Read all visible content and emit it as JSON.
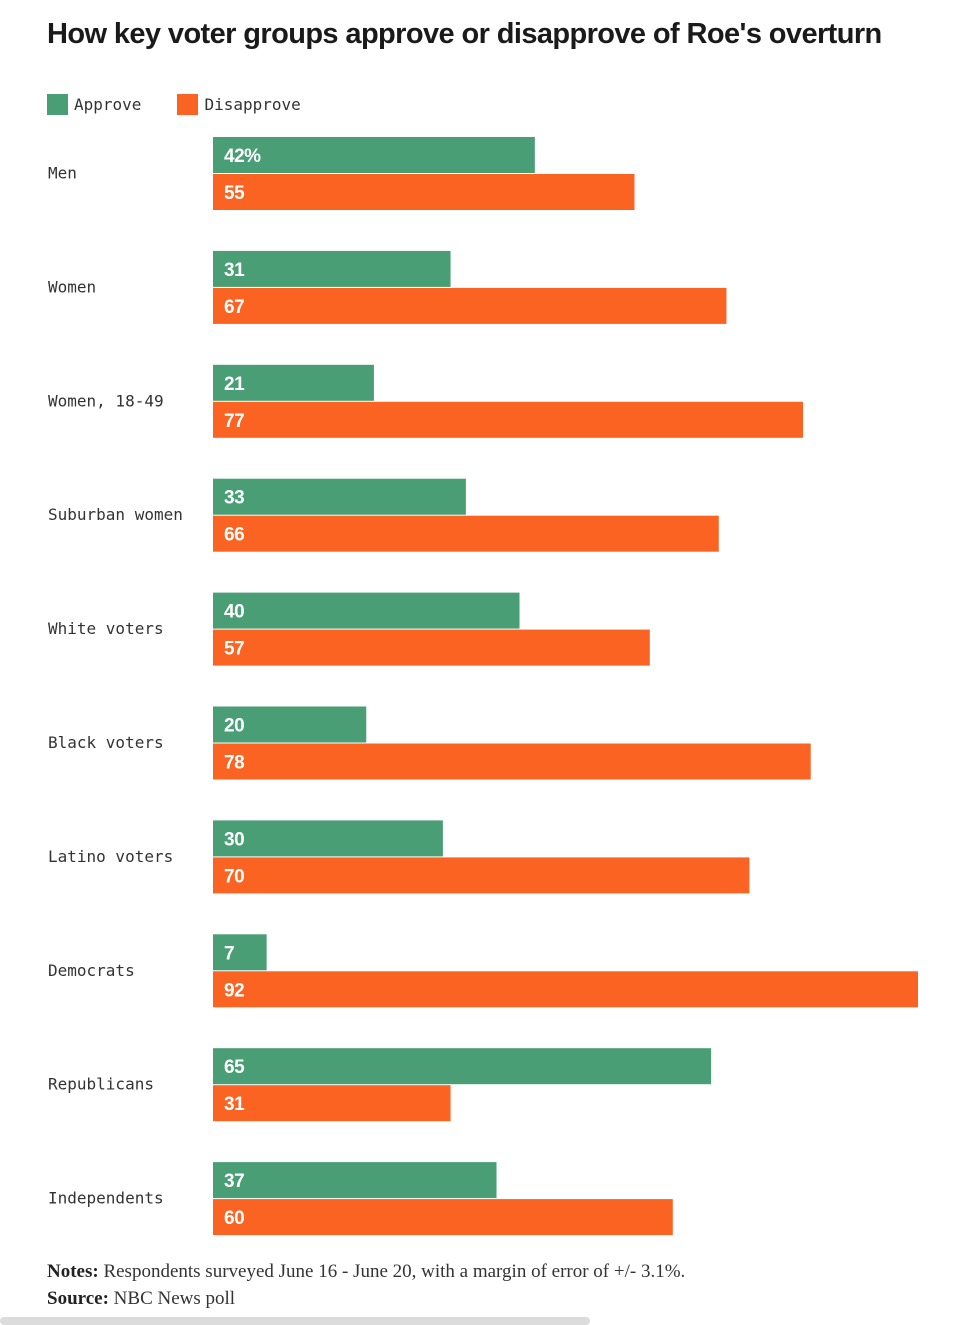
{
  "chart_data": {
    "type": "bar",
    "orientation": "horizontal",
    "title": "How key voter groups approve or disapprove of Roe's overturn",
    "categories": [
      "Men",
      "Women",
      "Women, 18-49",
      "Suburban women",
      "White voters",
      "Black voters",
      "Latino voters",
      "Democrats",
      "Republicans",
      "Independents"
    ],
    "series": [
      {
        "name": "Approve",
        "color": "#4a9e76",
        "values": [
          42,
          31,
          21,
          33,
          40,
          20,
          30,
          7,
          65,
          37
        ],
        "labels": [
          "42%",
          "31",
          "21",
          "33",
          "40",
          "20",
          "30",
          "7",
          "65",
          "37"
        ]
      },
      {
        "name": "Disapprove",
        "color": "#fa6322",
        "values": [
          55,
          67,
          77,
          66,
          57,
          78,
          70,
          92,
          31,
          60
        ],
        "labels": [
          "55",
          "67",
          "77",
          "66",
          "57",
          "78",
          "70",
          "92",
          "31",
          "60"
        ]
      }
    ],
    "xlim": [
      0,
      92
    ],
    "grid": false,
    "legend_position": "top-left"
  },
  "notes": {
    "notes_label": "Notes:",
    "notes_text": "Respondents surveyed June 16 - June 20, with a margin of error of +/- 3.1%.",
    "source_label": "Source:",
    "source_text": "NBC News poll"
  }
}
